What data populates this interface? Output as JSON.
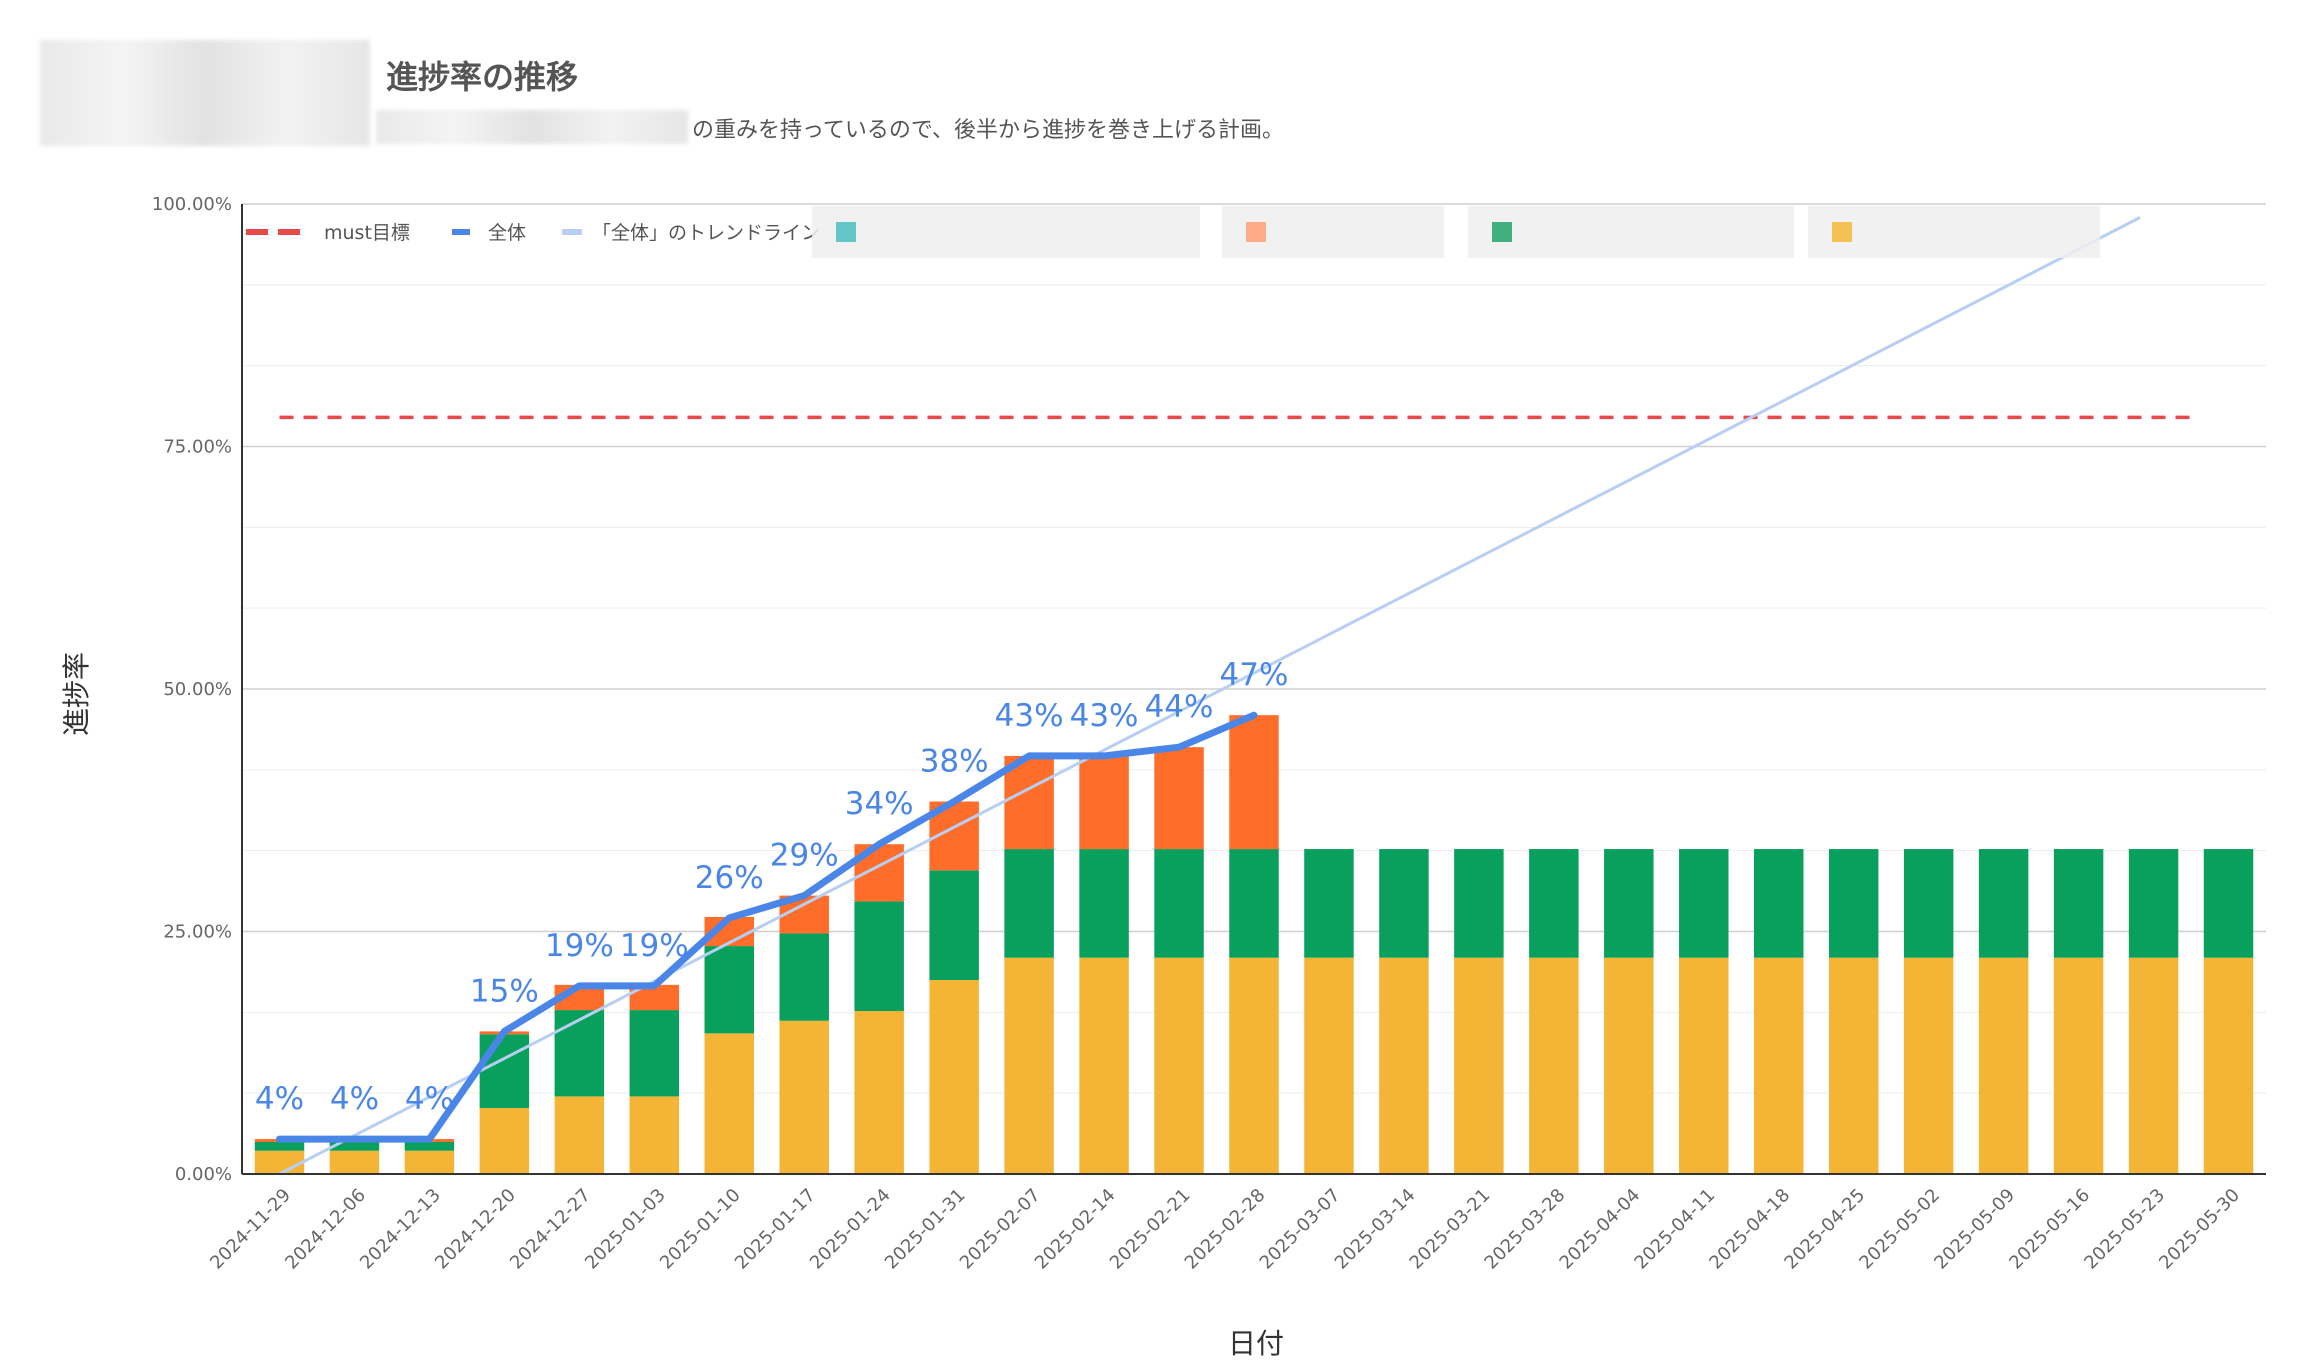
{
  "header": {
    "title": "進捗率の推移",
    "subtitle": "の重みを持っているので、後半から進捗を巻き上げる計画。"
  },
  "colors": {
    "must": "#e84a4a",
    "total": "#4a86e8",
    "trend": "#b7cff3",
    "seg_bottom": "#f4b536",
    "seg_mid": "#08a05c",
    "seg_top": "#ff6d2a"
  },
  "chart_data": {
    "type": "bar",
    "stacked": true,
    "ylabel": "進捗率",
    "xlabel": "日付",
    "ylim": [
      0,
      100
    ],
    "yticks": [
      "0.00%",
      "25.00%",
      "50.00%",
      "75.00%",
      "100.00%"
    ],
    "grid": true,
    "legend_position": "top-left",
    "categories": [
      "2024-11-29",
      "2024-12-06",
      "2024-12-13",
      "2024-12-20",
      "2024-12-27",
      "2025-01-03",
      "2025-01-10",
      "2025-01-17",
      "2025-01-24",
      "2025-01-31",
      "2025-02-07",
      "2025-02-14",
      "2025-02-21",
      "2025-02-28",
      "2025-03-07",
      "2025-03-14",
      "2025-03-21",
      "2025-03-28",
      "2025-04-04",
      "2025-04-11",
      "2025-04-18",
      "2025-04-25",
      "2025-05-02",
      "2025-05-09",
      "2025-05-16",
      "2025-05-23",
      "2025-05-30"
    ],
    "stack_series": [
      {
        "values": [
          2.4,
          2.4,
          2.4,
          6.8,
          8.0,
          8.0,
          14.5,
          15.8,
          16.8,
          20.0,
          22.3,
          22.3,
          22.3,
          22.3,
          22.3,
          22.3,
          22.3,
          22.3,
          22.3,
          22.3,
          22.3,
          22.3,
          22.3,
          22.3,
          22.3,
          22.3,
          22.3
        ]
      },
      {
        "values": [
          0.9,
          0.9,
          0.9,
          7.6,
          8.9,
          8.9,
          9.0,
          9.0,
          11.3,
          11.3,
          11.2,
          11.2,
          11.2,
          11.2,
          11.2,
          11.2,
          11.2,
          11.2,
          11.2,
          11.2,
          11.2,
          11.2,
          11.2,
          11.2,
          11.2,
          11.2,
          11.2
        ]
      },
      {
        "values": [
          0.3,
          0.3,
          0.3,
          0.3,
          2.6,
          2.6,
          3.0,
          3.9,
          5.9,
          7.1,
          9.6,
          9.6,
          10.5,
          13.8,
          0,
          0,
          0,
          0,
          0,
          0,
          0,
          0,
          0,
          0,
          0,
          0,
          0
        ]
      }
    ],
    "line_series": [
      {
        "name": "全体",
        "values": [
          3.6,
          3.6,
          3.6,
          14.7,
          19.4,
          19.4,
          26.4,
          28.7,
          34.0,
          38.4,
          43.1,
          43.1,
          44.0,
          47.3
        ]
      },
      {
        "name": "must目標",
        "constant": 78,
        "dashed": true
      }
    ],
    "trendline": {
      "name": "「全体」のトレンドライン",
      "from": 0,
      "to": 103.3
    },
    "data_labels": [
      "4%",
      "4%",
      "4%",
      "15%",
      "19%",
      "19%",
      "26%",
      "29%",
      "34%",
      "38%",
      "43%",
      "43%",
      "44%",
      "47%"
    ]
  }
}
